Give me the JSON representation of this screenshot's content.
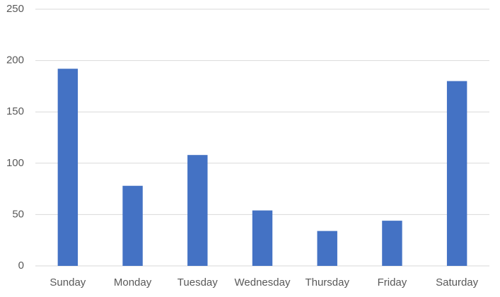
{
  "chart_data": {
    "type": "bar",
    "categories": [
      "Sunday",
      "Monday",
      "Tuesday",
      "Wednesday",
      "Thursday",
      "Friday",
      "Saturday"
    ],
    "values": [
      192,
      78,
      108,
      54,
      34,
      44,
      180
    ],
    "color": "#4472c4",
    "ylim": [
      0,
      250
    ],
    "yticks": [
      0,
      50,
      100,
      150,
      200,
      250
    ],
    "grid": true
  }
}
